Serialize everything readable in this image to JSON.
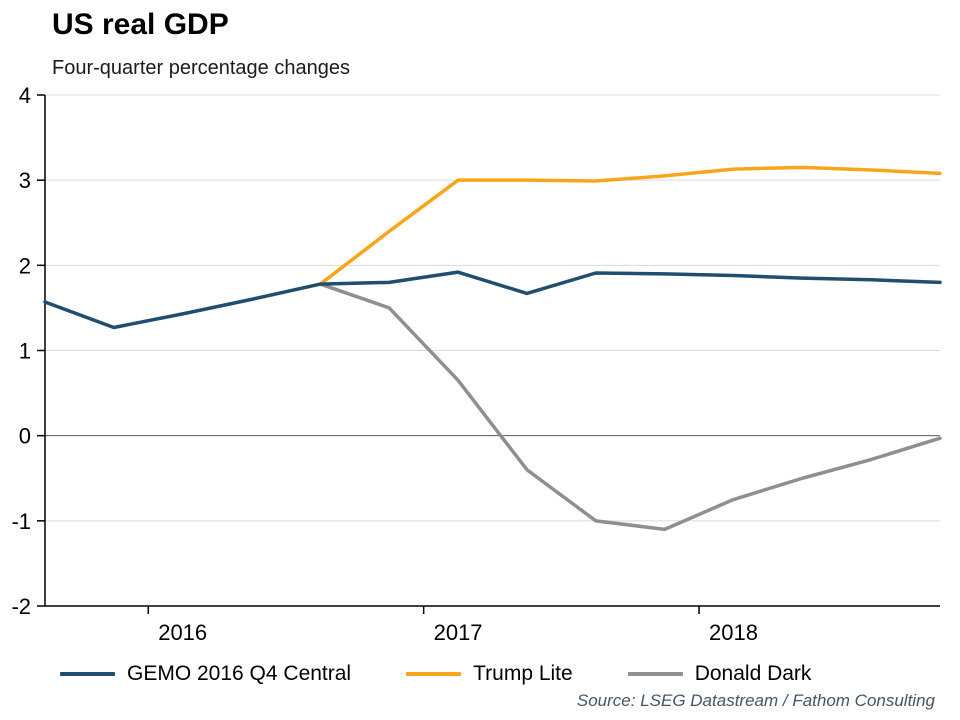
{
  "header": {
    "title": "US real GDP",
    "subtitle": "Four-quarter percentage changes"
  },
  "footer": {
    "source": "Source: LSEG Datastream / Fathom Consulting"
  },
  "colors": {
    "gemo": "#1F4E6E",
    "trump": "#F9A51B",
    "donald": "#8F8F8F",
    "grid": "#D9D9D9",
    "zero": "#595959",
    "axis": "#000000",
    "tick_text": "#000000"
  },
  "chart_data": {
    "type": "line",
    "title": "US real GDP",
    "subtitle": "Four-quarter percentage changes",
    "source": "Source: LSEG Datastream / Fathom Consulting",
    "x_unit": "quarter",
    "x_quarters": [
      "2015Q3",
      "2015Q4",
      "2016Q1",
      "2016Q2",
      "2016Q3",
      "2016Q4",
      "2017Q1",
      "2017Q2",
      "2017Q3",
      "2017Q4",
      "2018Q1",
      "2018Q2",
      "2018Q3",
      "2018Q4"
    ],
    "ylim": [
      -2,
      4
    ],
    "y_ticks": [
      4,
      3,
      2,
      1,
      0,
      -1,
      -2
    ],
    "grid": "horizontal",
    "legend_position": "bottom",
    "x_year_labels": [
      {
        "label": "2016",
        "index": 2
      },
      {
        "label": "2017",
        "index": 6
      },
      {
        "label": "2018",
        "index": 10
      }
    ],
    "x_year_tick_indices": [
      1.5,
      5.5,
      9.5
    ],
    "series": [
      {
        "name": "GEMO 2016 Q4 Central",
        "color_key": "gemo",
        "values": [
          1.57,
          1.27,
          1.43,
          1.6,
          1.78,
          1.8,
          1.92,
          1.67,
          1.91,
          1.9,
          1.88,
          1.85,
          1.83,
          1.8
        ]
      },
      {
        "name": "Trump Lite",
        "color_key": "trump",
        "values": [
          null,
          null,
          null,
          null,
          1.78,
          2.4,
          3.0,
          3.0,
          2.99,
          3.05,
          3.13,
          3.15,
          3.12,
          3.08
        ]
      },
      {
        "name": "Donald Dark",
        "color_key": "donald",
        "values": [
          null,
          null,
          null,
          null,
          1.78,
          1.5,
          0.65,
          -0.4,
          -1.0,
          -1.1,
          -0.75,
          -0.5,
          -0.28,
          -0.03
        ]
      }
    ]
  }
}
